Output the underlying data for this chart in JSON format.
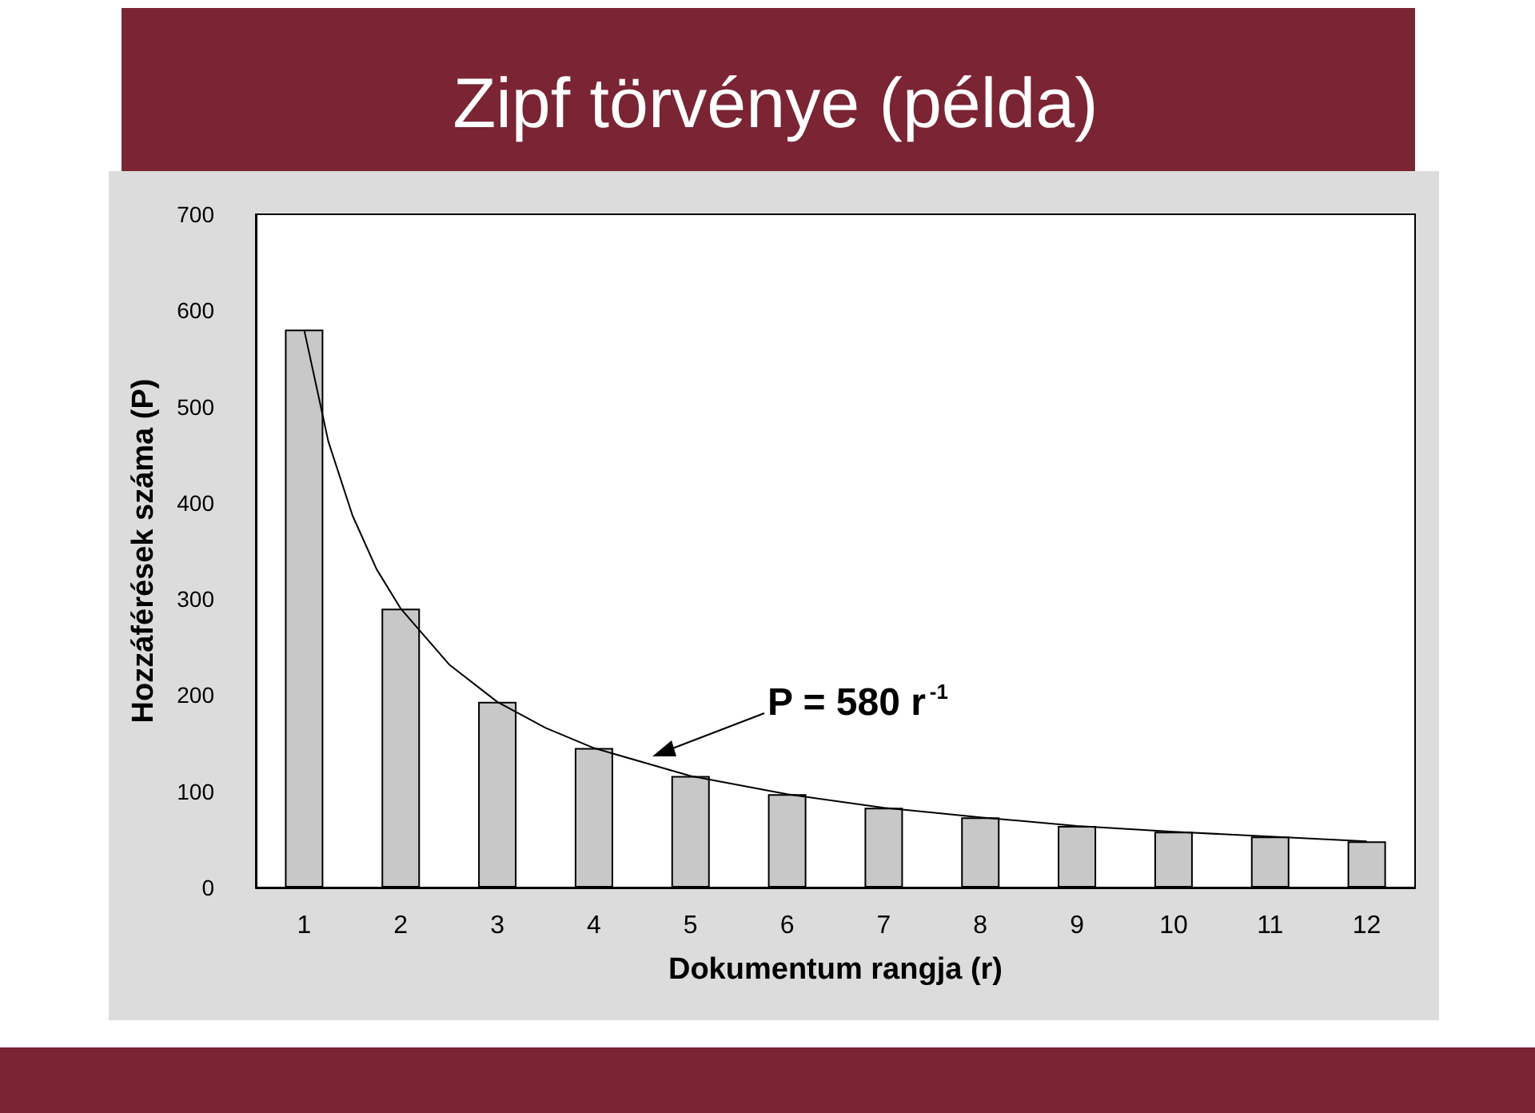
{
  "chart_data": {
    "type": "bar",
    "title": "Zipf törvénye (példa)",
    "xlabel": "Dokumentum rangja (r)",
    "ylabel": "Hozzáférések száma (P)",
    "x": [
      1,
      2,
      3,
      4,
      5,
      6,
      7,
      8,
      9,
      10,
      11,
      12
    ],
    "series": [
      {
        "color": "#c8c8c8",
        "values": [
          580,
          290,
          193,
          145,
          116,
          97,
          83,
          73,
          64,
          58,
          53,
          48
        ]
      },
      {
        "type": "line",
        "color": "#000000",
        "x": [
          1,
          1.25,
          1.5,
          1.75,
          2,
          2.5,
          3,
          3.5,
          4,
          5,
          6,
          7,
          8,
          9,
          10,
          11,
          12
        ],
        "values": [
          580,
          464,
          387,
          331,
          290,
          232,
          193,
          166,
          145,
          116,
          97,
          83,
          73,
          64,
          58,
          53,
          48
        ]
      }
    ],
    "xlim": [
      0.5,
      12.5
    ],
    "xticks": [
      1,
      2,
      3,
      4,
      5,
      6,
      7,
      8,
      9,
      10,
      11,
      12
    ],
    "ylim": [
      0,
      700
    ],
    "yticks": [
      0,
      100,
      200,
      300,
      400,
      500,
      600,
      700
    ],
    "grid": false,
    "annotations": [
      "P = 580 r$^{-1}$"
    ]
  }
}
